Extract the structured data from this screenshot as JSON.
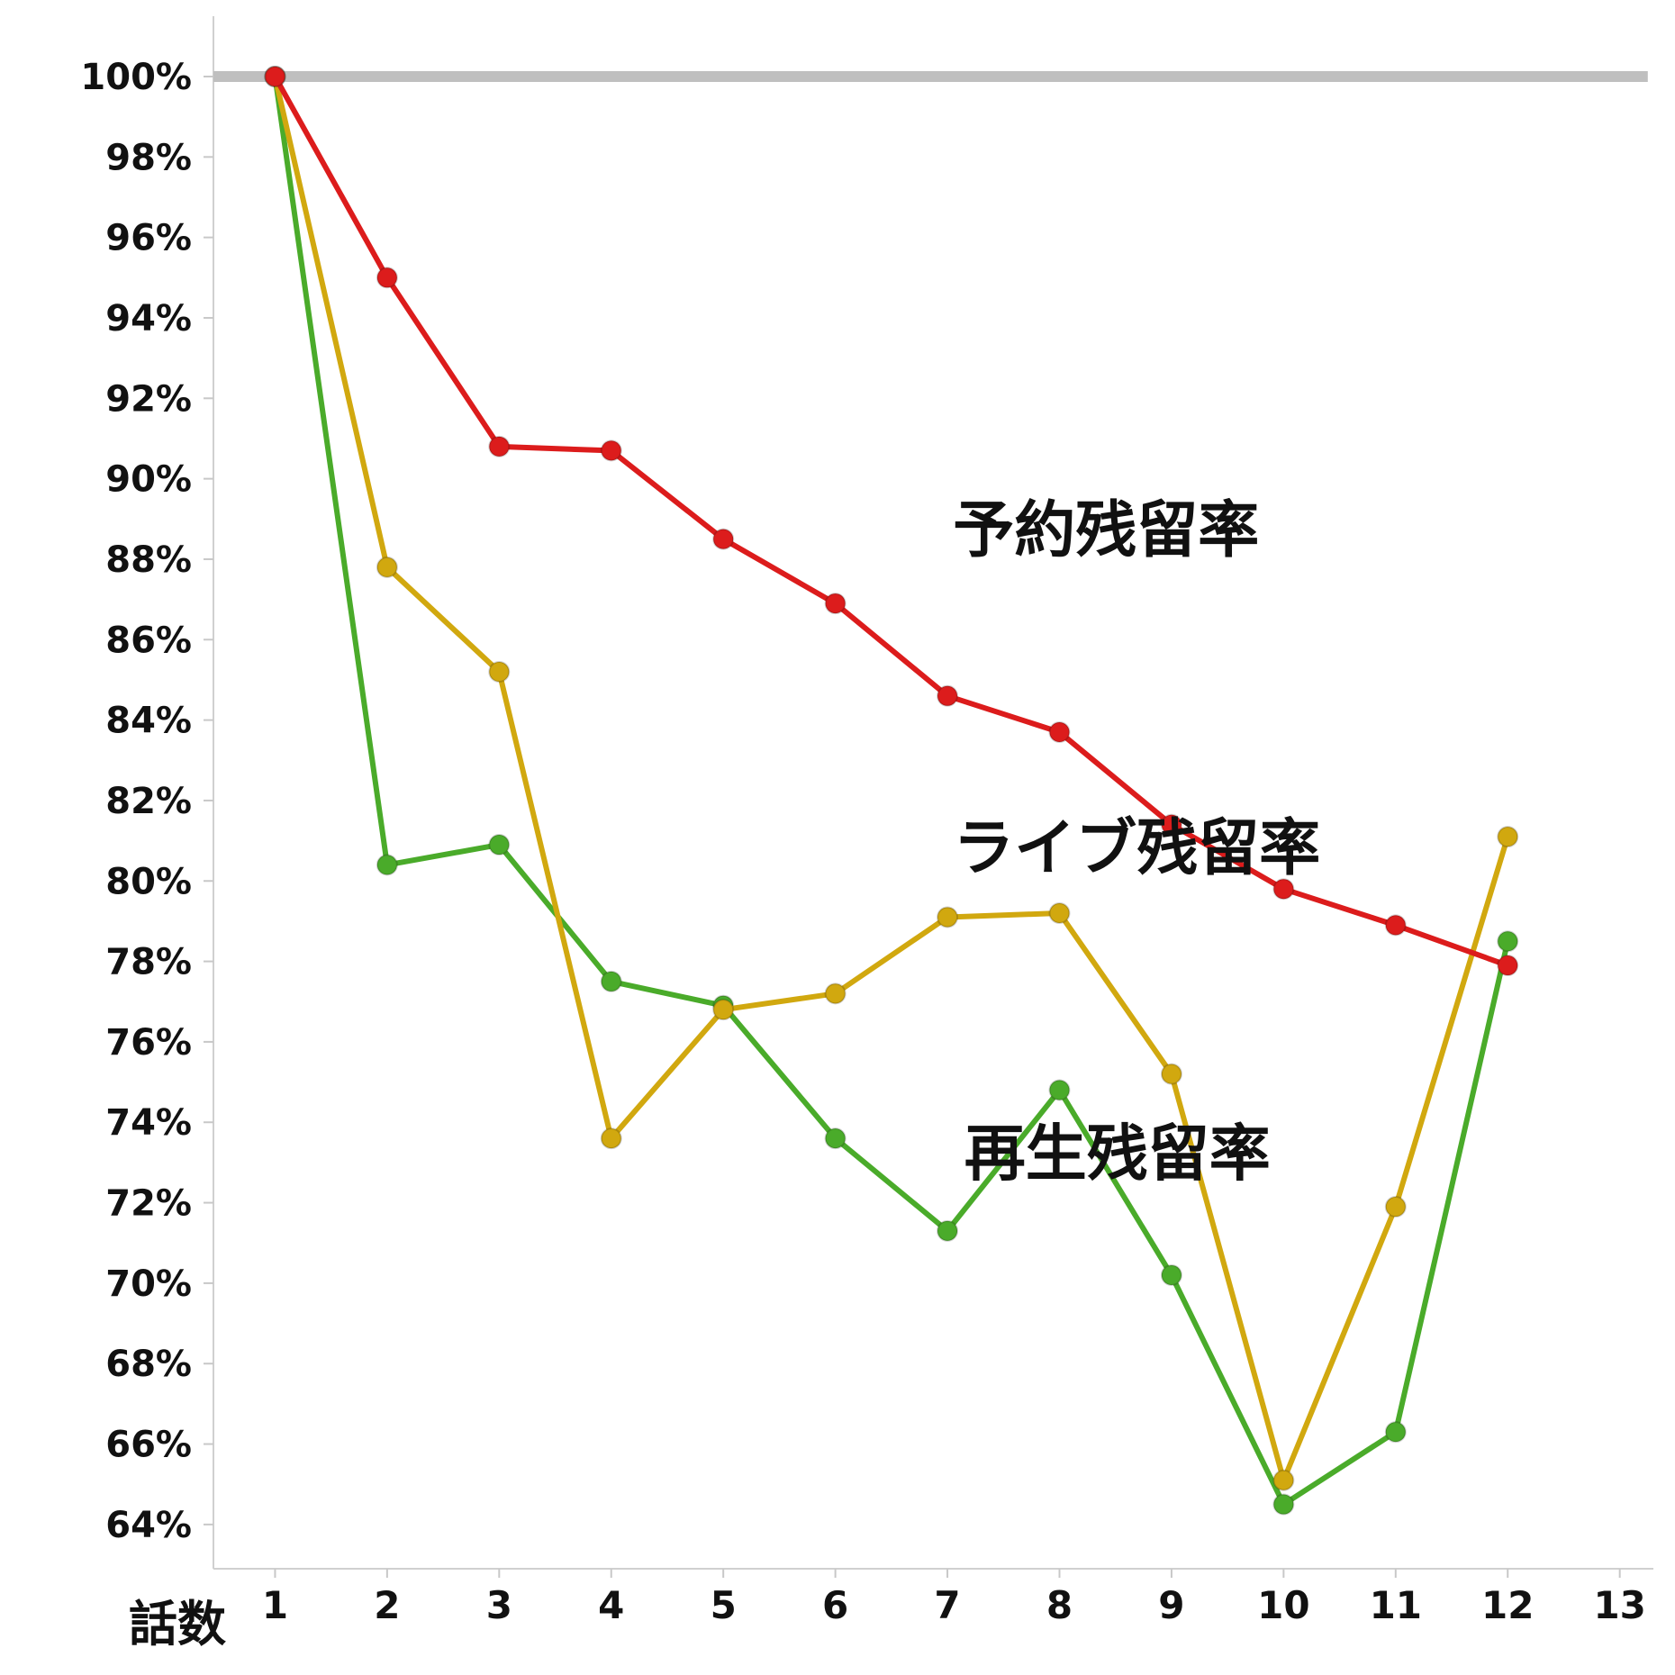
{
  "chart_data": {
    "type": "line",
    "title": "",
    "xlabel": "話数",
    "ylabel": "",
    "x": [
      1,
      2,
      3,
      4,
      5,
      6,
      7,
      8,
      9,
      10,
      11,
      12
    ],
    "x_ticks": [
      "1",
      "2",
      "3",
      "4",
      "5",
      "6",
      "7",
      "8",
      "9",
      "10",
      "11",
      "12",
      "13"
    ],
    "xlim": [
      0.45,
      13.3
    ],
    "y_ticks": [
      "100%",
      "98%",
      "96%",
      "94%",
      "92%",
      "90%",
      "88%",
      "86%",
      "84%",
      "82%",
      "80%",
      "78%",
      "76%",
      "74%",
      "72%",
      "70%",
      "68%",
      "66%",
      "64%"
    ],
    "ylim": [
      62.9,
      101.5
    ],
    "reference_line": {
      "value": 100,
      "color": "#bfbfbf"
    },
    "series": [
      {
        "name": "再生残留率",
        "color": "#4aab2a",
        "values": [
          100,
          80.4,
          80.9,
          77.5,
          76.9,
          73.6,
          71.3,
          74.8,
          70.2,
          64.5,
          66.3,
          78.5
        ]
      },
      {
        "name": "ライブ残留率",
        "color": "#d1a80f",
        "values": [
          100,
          87.8,
          85.2,
          73.6,
          76.8,
          77.2,
          79.1,
          79.2,
          75.2,
          65.1,
          71.9,
          81.1
        ]
      },
      {
        "name": "予約残留率",
        "color": "#dc1c1c",
        "values": [
          100,
          95.0,
          90.8,
          90.7,
          88.5,
          86.9,
          84.6,
          83.7,
          81.4,
          79.8,
          78.9,
          77.9
        ]
      }
    ],
    "annotations": [
      {
        "text": "予約残留率",
        "series": "予約残留率",
        "anchor_x": 7.05,
        "anchor_y": 88.2
      },
      {
        "text": "ライブ残留率",
        "series": "ライブ残留率",
        "anchor_x": 7.05,
        "anchor_y": 80.3
      },
      {
        "text": "再生残留率",
        "series": "再生残留率",
        "anchor_x": 7.15,
        "anchor_y": 72.7
      }
    ]
  }
}
